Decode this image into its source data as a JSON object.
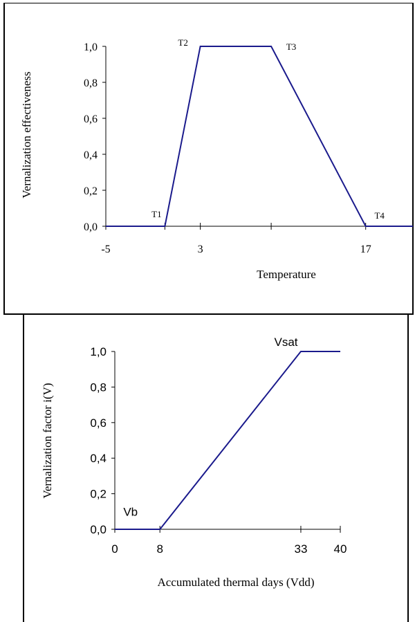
{
  "chart_data": [
    {
      "type": "line",
      "title": "",
      "xlabel": "Temperature",
      "ylabel": "Vernalization effectiveness",
      "x_tick_labels": [
        {
          "value": -5,
          "label": "-5"
        },
        {
          "value": 3,
          "label": "3"
        },
        {
          "value": 17,
          "label": "17"
        }
      ],
      "y_tick_labels": [
        "0,0",
        "0,2",
        "0,4",
        "0,6",
        "0,8",
        "1,0"
      ],
      "y_ticks": [
        0,
        0.2,
        0.4,
        0.6,
        0.8,
        1.0
      ],
      "xlim": [
        -5,
        21
      ],
      "ylim": [
        0,
        1
      ],
      "series": [
        {
          "x": [
            -5,
            0,
            3,
            9,
            17,
            21
          ],
          "y": [
            0,
            0,
            1,
            1,
            0,
            0
          ],
          "color": "#1a1a8c"
        }
      ],
      "annotations": [
        {
          "text": "T1",
          "x": 0,
          "y": 0
        },
        {
          "text": "T2",
          "x": 3,
          "y": 1
        },
        {
          "text": "T3",
          "x": 9,
          "y": 1
        },
        {
          "text": "T4",
          "x": 17,
          "y": 0
        }
      ]
    },
    {
      "type": "line",
      "title": "",
      "xlabel": "Accumulated thermal days (Vdd)",
      "ylabel": "Vernalization factor i(V)",
      "x_tick_labels": [
        {
          "value": 0,
          "label": "0"
        },
        {
          "value": 8,
          "label": "8"
        },
        {
          "value": 33,
          "label": "33"
        },
        {
          "value": 40,
          "label": "40"
        }
      ],
      "y_tick_labels": [
        "0,0",
        "0,2",
        "0,4",
        "0,6",
        "0,8",
        "1,0"
      ],
      "y_ticks": [
        0,
        0.2,
        0.4,
        0.6,
        0.8,
        1.0
      ],
      "xlim": [
        0,
        40
      ],
      "ylim": [
        0,
        1
      ],
      "series": [
        {
          "x": [
            0,
            8,
            33,
            40
          ],
          "y": [
            0,
            0,
            1,
            1
          ],
          "color": "#1a1a8c"
        }
      ],
      "annotations": [
        {
          "text": "Vb",
          "x": 5,
          "y": 0.1
        },
        {
          "text": "Vsat",
          "x": 30,
          "y": 1
        }
      ]
    }
  ]
}
